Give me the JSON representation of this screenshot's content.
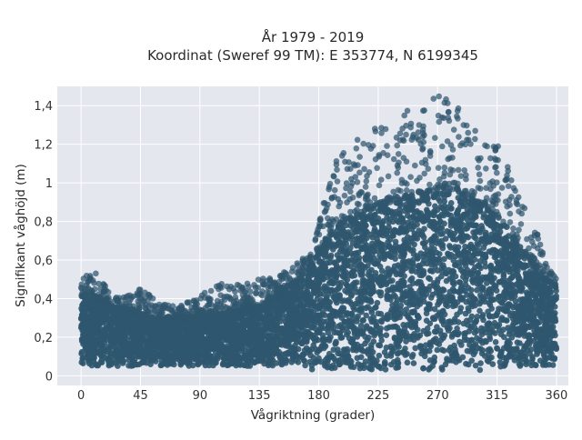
{
  "chart_data": {
    "type": "scatter",
    "title_line1": "År 1979 - 2019",
    "title_line2": "Koordinat (Sweref 99 TM): E 353774, N 6199345",
    "xlabel": "Vågriktning (grader)",
    "ylabel": "Signifikant våghöjd (m)",
    "xlim": [
      -18,
      369
    ],
    "ylim": [
      -0.05,
      1.5
    ],
    "xticks": [
      0,
      45,
      90,
      135,
      180,
      225,
      270,
      315,
      360
    ],
    "yticks": [
      0,
      0.2,
      0.4,
      0.6,
      0.8,
      1,
      1.2,
      1.4
    ],
    "xtick_labels": [
      "0",
      "45",
      "90",
      "135",
      "180",
      "225",
      "270",
      "315",
      "360"
    ],
    "ytick_labels": [
      "0",
      "0,2",
      "0,4",
      "0,6",
      "0,8",
      "1",
      "1,2",
      "1,4"
    ],
    "grid": true,
    "legend": "none",
    "plot_background": "#e5e7ef",
    "marker_color": "#2f566e",
    "envelope": {
      "x": [
        0,
        10,
        20,
        30,
        45,
        60,
        75,
        90,
        105,
        120,
        135,
        150,
        165,
        175,
        185,
        195,
        205,
        215,
        225,
        235,
        245,
        255,
        265,
        275,
        285,
        295,
        305,
        315,
        325,
        335,
        345,
        355,
        360
      ],
      "dense_top": [
        0.42,
        0.41,
        0.38,
        0.35,
        0.32,
        0.3,
        0.3,
        0.31,
        0.32,
        0.34,
        0.37,
        0.43,
        0.5,
        0.58,
        0.7,
        0.78,
        0.82,
        0.86,
        0.88,
        0.9,
        0.92,
        0.94,
        0.96,
        0.98,
        0.96,
        0.92,
        0.88,
        0.82,
        0.75,
        0.65,
        0.55,
        0.48,
        0.46
      ],
      "outlier_top": [
        0.5,
        0.55,
        0.46,
        0.4,
        0.45,
        0.38,
        0.36,
        0.42,
        0.5,
        0.47,
        0.5,
        0.52,
        0.6,
        0.65,
        0.95,
        1.15,
        1.2,
        1.3,
        1.35,
        1.3,
        1.4,
        1.35,
        1.45,
        1.45,
        1.4,
        1.3,
        1.25,
        1.25,
        1.05,
        0.9,
        0.75,
        0.55,
        0.5
      ],
      "dense_bottom": [
        0.05,
        0.05,
        0.05,
        0.05,
        0.05,
        0.05,
        0.05,
        0.05,
        0.05,
        0.05,
        0.05,
        0.05,
        0.04,
        0.03,
        0.03,
        0.03,
        0.03,
        0.03,
        0.03,
        0.03,
        0.03,
        0.03,
        0.03,
        0.03,
        0.03,
        0.03,
        0.03,
        0.03,
        0.04,
        0.04,
        0.05,
        0.05,
        0.05
      ]
    }
  }
}
